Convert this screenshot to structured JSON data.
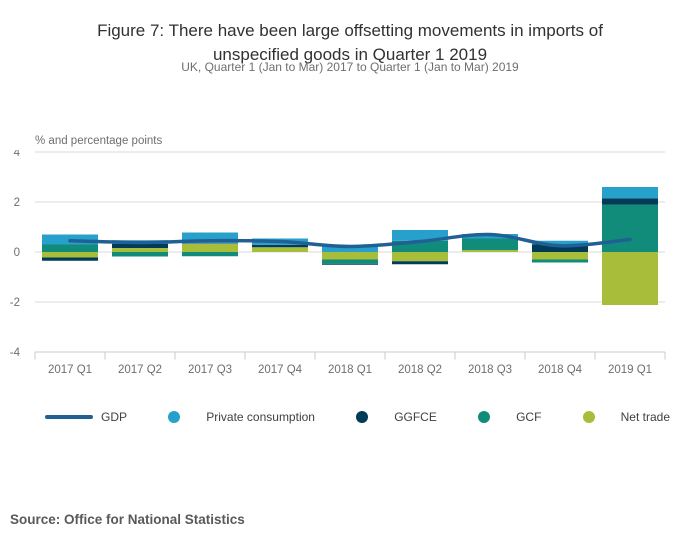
{
  "header": {
    "title": "Figure 7: There have been large offsetting movements in imports of unspecified goods in Quarter 1 2019",
    "subtitle": "UK, Quarter 1 (Jan to Mar) 2017 to Quarter 1 (Jan to Mar) 2019"
  },
  "chart_data": {
    "type": "stacked-bar+line",
    "unit_label": "% and percentage points",
    "categories": [
      "2017 Q1",
      "2017 Q2",
      "2017 Q3",
      "2017 Q4",
      "2018 Q1",
      "2018 Q2",
      "2018 Q3",
      "2018 Q4",
      "2019 Q1"
    ],
    "yticks": [
      4,
      2,
      0,
      -2,
      -4
    ],
    "ylim": [
      -4,
      4
    ],
    "grid": true,
    "stack_order": [
      "net_trade",
      "gcf",
      "ggfce",
      "private_consumption"
    ],
    "series": [
      {
        "id": "private_consumption",
        "name": "Private consumption",
        "color": "#27a0cc",
        "values": [
          0.4,
          0.15,
          0.43,
          0.25,
          0.25,
          0.43,
          0.18,
          0.15,
          0.45
        ]
      },
      {
        "id": "ggfce",
        "name": "GGFCE",
        "color": "#003c57",
        "values": [
          -0.13,
          0.16,
          0.02,
          0.1,
          -0.04,
          -0.12,
          0.0,
          0.3,
          0.26
        ]
      },
      {
        "id": "gcf",
        "name": "GCF",
        "color": "#118c7b",
        "values": [
          0.3,
          -0.18,
          -0.17,
          0.0,
          -0.17,
          0.45,
          0.46,
          -0.12,
          1.89
        ]
      },
      {
        "id": "net_trade",
        "name": "Net trade",
        "color": "#a8bd3a",
        "values": [
          -0.22,
          0.16,
          0.33,
          0.19,
          -0.3,
          -0.37,
          0.08,
          -0.3,
          -2.12
        ]
      }
    ],
    "line_series": {
      "id": "gdp",
      "name": "GDP",
      "color": "#206095",
      "values": [
        0.45,
        0.38,
        0.45,
        0.42,
        0.22,
        0.42,
        0.7,
        0.25,
        0.5
      ]
    }
  },
  "legend": {
    "items": [
      {
        "label": "GDP",
        "type": "line",
        "color": "#206095"
      },
      {
        "label": "Private consumption",
        "type": "dot",
        "color": "#27a0cc"
      },
      {
        "label": "GGFCE",
        "type": "dot",
        "color": "#003c57"
      },
      {
        "label": "GCF",
        "type": "dot",
        "color": "#118c7b"
      },
      {
        "label": "Net trade",
        "type": "dot",
        "color": "#a8bd3a"
      }
    ]
  },
  "colors": {
    "gridline": "#d9d9d9",
    "axis": "#c3ccd6",
    "tick_text": "#6e6e6e"
  },
  "source": "Source: Office for National Statistics"
}
